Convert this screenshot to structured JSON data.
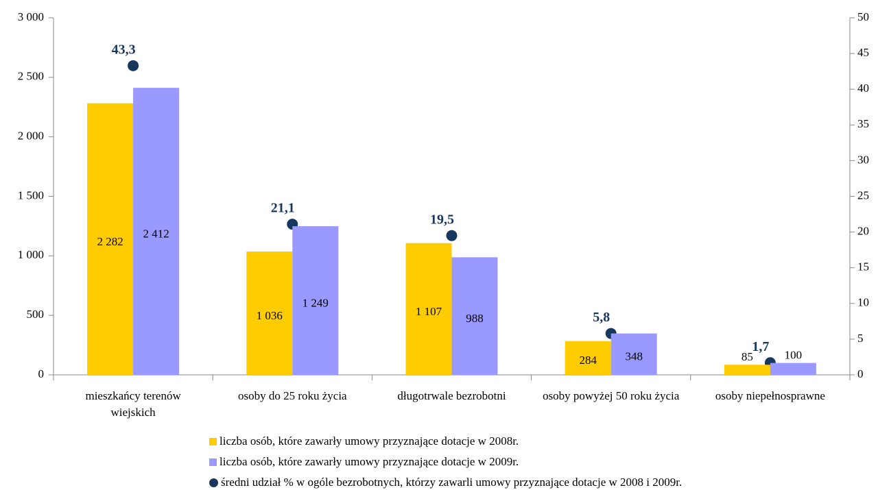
{
  "chart_data": {
    "type": "bar",
    "categories": [
      "mieszkańcy terenów wiejskich",
      "osoby do 25 roku życia",
      "długotrwale bezrobotni",
      "osoby powyżej 50 roku życia",
      "osoby niepełnosprawne"
    ],
    "series": [
      {
        "name": "liczba osób, które zawarły umowy przyznające dotacje w 2008r.",
        "color": "#ffcc00",
        "values": [
          2282,
          1036,
          1107,
          284,
          85
        ],
        "value_labels": [
          "2 282",
          "1 036",
          "1 107",
          "284",
          "85"
        ]
      },
      {
        "name": "liczba osób, które zawarły umowy przyznające dotacje w 2009r.",
        "color": "#9999ff",
        "values": [
          2412,
          1249,
          988,
          348,
          100
        ],
        "value_labels": [
          "2 412",
          "1 249",
          "988",
          "348",
          "100"
        ]
      },
      {
        "name": "średni udział % w ogóle bezrobotnych, którzy zawarli umowy przyznające dotacje w 2008 i 2009r.",
        "color": "#17375e",
        "type": "scatter",
        "axis": "y2",
        "values": [
          43.3,
          21.1,
          19.5,
          5.8,
          1.7
        ],
        "value_labels": [
          "43,3",
          "21,1",
          "19,5",
          "5,8",
          "1,7"
        ]
      }
    ],
    "ylim": [
      0,
      3000
    ],
    "yticks": [
      0,
      500,
      {
        "value": 1000,
        "label": "1 000"
      },
      {
        "value": 1500,
        "label": "1 500"
      },
      {
        "value": 2000,
        "label": "2 000"
      },
      {
        "value": 2500,
        "label": "2 500"
      },
      {
        "value": 3000,
        "label": "3 000"
      }
    ],
    "y2lim": [
      0,
      50
    ],
    "y2ticks": [
      0,
      5,
      10,
      15,
      20,
      25,
      30,
      35,
      40,
      45,
      50
    ],
    "grid": false
  }
}
